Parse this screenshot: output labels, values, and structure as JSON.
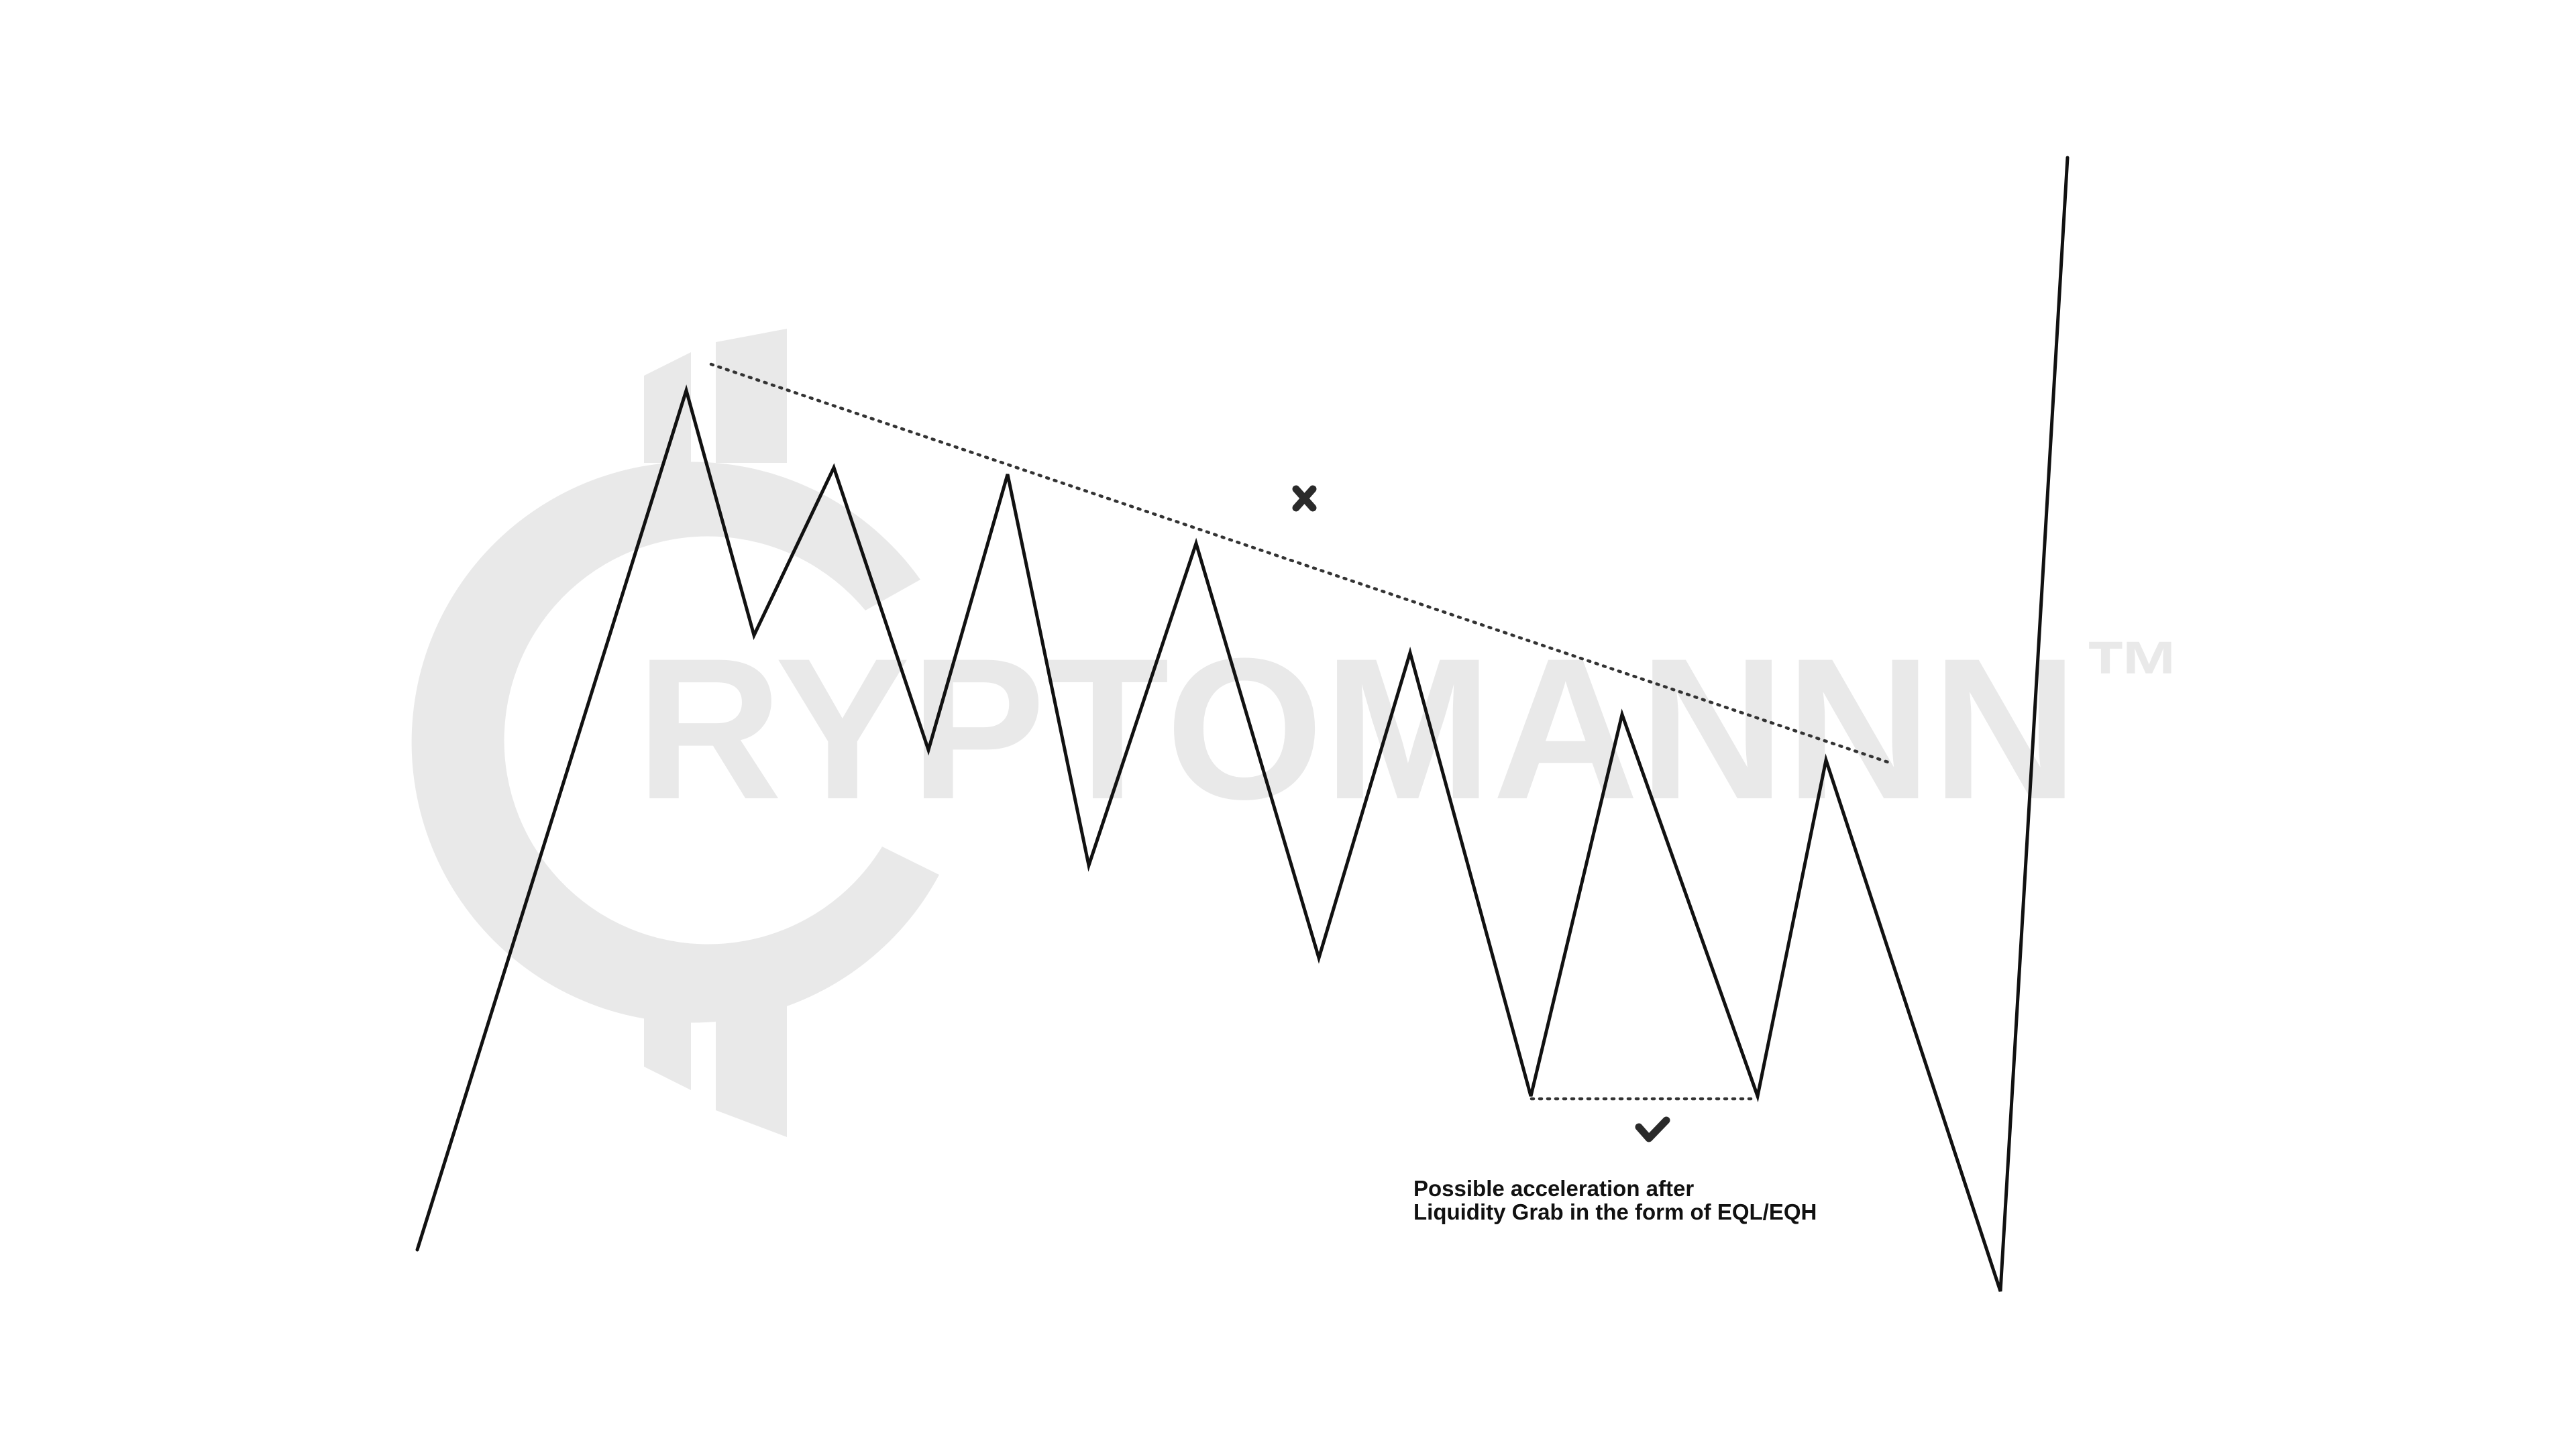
{
  "canvas": {
    "background": "#ffffff"
  },
  "watermark": {
    "text": "RYPTOMANNN",
    "trademark": "™",
    "color": "#e9e9e9"
  },
  "diagram": {
    "price_path_color": "#111111",
    "trendline_color": "#333333",
    "equal_lows_color": "#333333",
    "marker_color": "#2a2a2a"
  },
  "markers": {
    "invalid": {
      "icon": "x-mark-icon",
      "meaning": "rejected"
    },
    "valid": {
      "icon": "checkmark-icon",
      "meaning": "accepted"
    }
  },
  "annotation": {
    "line1": "Possible acceleration after",
    "line2": "Liquidity Grab in the form of EQL/EQH"
  }
}
